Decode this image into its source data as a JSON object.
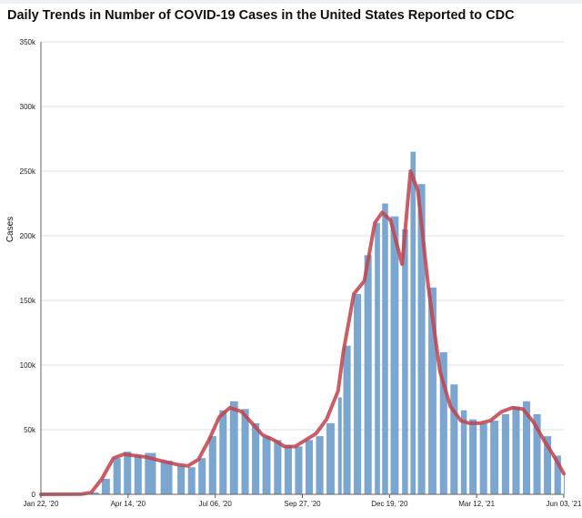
{
  "title": "Daily Trends in Number of COVID-19 Cases in the United States Reported to CDC",
  "chart_data": {
    "type": "bar",
    "title": "Daily Trends in Number of COVID-19 Cases in the United States Reported to CDC",
    "xlabel": "",
    "ylabel": "Cases",
    "ylim": [
      0,
      350000
    ],
    "y_ticks": [
      "0",
      "50k",
      "100k",
      "150k",
      "200k",
      "250k",
      "300k",
      "350k"
    ],
    "x_ticks": [
      "Jan 22, '20",
      "Apr 14, '20",
      "Jul 06, '20",
      "Sep 27, '20",
      "Dec 19, '20",
      "Mar 12, '21",
      "Jun 03, '21"
    ],
    "x_range": [
      "2020-01-22",
      "2021-06-03"
    ],
    "grid": true,
    "bar_color": "#7ba6cf",
    "line_color": "#c2414b",
    "series": [
      {
        "type": "bar",
        "x": [
          "2020-01-22",
          "2020-03-01",
          "2020-03-10",
          "2020-03-20",
          "2020-03-31",
          "2020-04-10",
          "2020-04-20",
          "2020-04-30",
          "2020-05-15",
          "2020-05-31",
          "2020-06-10",
          "2020-06-20",
          "2020-06-30",
          "2020-07-10",
          "2020-07-20",
          "2020-07-31",
          "2020-08-10",
          "2020-08-20",
          "2020-08-31",
          "2020-09-10",
          "2020-09-20",
          "2020-09-30",
          "2020-10-10",
          "2020-10-20",
          "2020-10-31",
          "2020-11-05",
          "2020-11-15",
          "2020-11-25",
          "2020-12-05",
          "2020-12-12",
          "2020-12-20",
          "2020-12-31",
          "2021-01-08",
          "2021-01-15",
          "2021-01-25",
          "2021-02-05",
          "2021-02-15",
          "2021-02-25",
          "2021-03-05",
          "2021-03-15",
          "2021-03-25",
          "2021-04-05",
          "2021-04-15",
          "2021-04-25",
          "2021-05-05",
          "2021-05-15",
          "2021-05-25",
          "2021-06-03"
        ],
        "values": [
          0,
          100,
          1500,
          12000,
          28000,
          33000,
          30000,
          32000,
          26000,
          22000,
          21000,
          28000,
          45000,
          65000,
          72000,
          66000,
          55000,
          45000,
          42000,
          38000,
          37000,
          42000,
          45000,
          55000,
          75000,
          115000,
          155000,
          185000,
          210000,
          225000,
          215000,
          205000,
          265000,
          240000,
          160000,
          110000,
          85000,
          65000,
          58000,
          55000,
          57000,
          62000,
          68000,
          72000,
          62000,
          45000,
          30000,
          15000
        ]
      },
      {
        "type": "line",
        "x": [
          "2020-01-22",
          "2020-03-01",
          "2020-03-10",
          "2020-03-20",
          "2020-03-31",
          "2020-04-10",
          "2020-04-20",
          "2020-04-30",
          "2020-05-15",
          "2020-05-31",
          "2020-06-10",
          "2020-06-20",
          "2020-06-30",
          "2020-07-10",
          "2020-07-20",
          "2020-07-31",
          "2020-08-10",
          "2020-08-20",
          "2020-08-31",
          "2020-09-10",
          "2020-09-20",
          "2020-09-30",
          "2020-10-10",
          "2020-10-20",
          "2020-10-31",
          "2020-11-05",
          "2020-11-15",
          "2020-11-25",
          "2020-12-05",
          "2020-12-12",
          "2020-12-20",
          "2020-12-31",
          "2021-01-08",
          "2021-01-15",
          "2021-01-25",
          "2021-02-05",
          "2021-02-15",
          "2021-02-25",
          "2021-03-05",
          "2021-03-15",
          "2021-03-25",
          "2021-04-05",
          "2021-04-15",
          "2021-04-25",
          "2021-05-05",
          "2021-05-15",
          "2021-05-25",
          "2021-06-03"
        ],
        "values": [
          0,
          200,
          1500,
          12000,
          28000,
          31000,
          30000,
          29000,
          26000,
          23000,
          22000,
          27000,
          42000,
          60000,
          67000,
          64000,
          55000,
          46000,
          42000,
          37000,
          37000,
          42000,
          47000,
          58000,
          80000,
          110000,
          155000,
          165000,
          210000,
          218000,
          212000,
          178000,
          250000,
          235000,
          160000,
          95000,
          68000,
          57000,
          55000,
          55000,
          57000,
          64000,
          67000,
          66000,
          56000,
          42000,
          29000,
          16000
        ]
      }
    ]
  }
}
